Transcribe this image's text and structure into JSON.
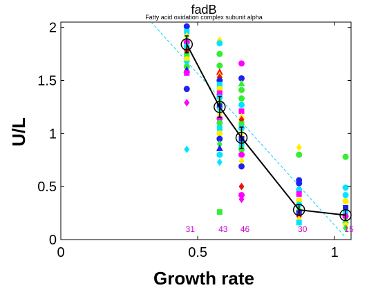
{
  "chart_data": {
    "type": "scatter",
    "title": "fadB",
    "subtitle": "Fatty acid oxidation complex subunit alpha",
    "xlabel": "Growth rate",
    "ylabel": "U/L",
    "xlim": [
      0,
      1.06
    ],
    "ylim": [
      0,
      2.05
    ],
    "x_ticks": [
      0,
      0.5,
      1
    ],
    "y_ticks": [
      0,
      0.5,
      1,
      1.5,
      2
    ],
    "grid": false,
    "legend": "none",
    "mean_series": {
      "x": [
        0.46,
        0.58,
        0.66,
        0.87,
        1.04
      ],
      "y": [
        1.84,
        1.25,
        0.96,
        0.28,
        0.23
      ],
      "err": [
        0.08,
        0.1,
        0.1,
        0.05,
        0.05
      ]
    },
    "fit_line": {
      "x": [
        0.33,
        1.04
      ],
      "y": [
        2.05,
        0.02
      ]
    },
    "sample_counts": [
      {
        "x": 0.46,
        "label": "31"
      },
      {
        "x": 0.58,
        "label": "43"
      },
      {
        "x": 0.66,
        "label": "46"
      },
      {
        "x": 0.87,
        "label": "30"
      },
      {
        "x": 1.04,
        "label": "15"
      }
    ],
    "points": [
      {
        "x": 0.46,
        "y": 2.01,
        "c": "#2222ee",
        "s": "o"
      },
      {
        "x": 0.46,
        "y": 1.96,
        "c": "#00e5ff",
        "s": "s"
      },
      {
        "x": 0.46,
        "y": 1.92,
        "c": "#ffee00",
        "s": "d"
      },
      {
        "x": 0.46,
        "y": 1.89,
        "c": "#33ee33",
        "s": "^"
      },
      {
        "x": 0.46,
        "y": 1.86,
        "c": "#ff00ff",
        "s": "o"
      },
      {
        "x": 0.46,
        "y": 1.82,
        "c": "#00e5ff",
        "s": "o"
      },
      {
        "x": 0.46,
        "y": 1.78,
        "c": "#ee1111",
        "s": "d"
      },
      {
        "x": 0.46,
        "y": 1.74,
        "c": "#33ee33",
        "s": "s"
      },
      {
        "x": 0.46,
        "y": 1.7,
        "c": "#ffee00",
        "s": "o"
      },
      {
        "x": 0.46,
        "y": 1.66,
        "c": "#00e5ff",
        "s": "v"
      },
      {
        "x": 0.46,
        "y": 1.63,
        "c": "#33ee33",
        "s": "o"
      },
      {
        "x": 0.46,
        "y": 1.6,
        "c": "#2222ee",
        "s": "^"
      },
      {
        "x": 0.46,
        "y": 1.57,
        "c": "#ff00ff",
        "s": "s"
      },
      {
        "x": 0.46,
        "y": 1.42,
        "c": "#2222ee",
        "s": "o"
      },
      {
        "x": 0.46,
        "y": 1.29,
        "c": "#ff00ff",
        "s": "d"
      },
      {
        "x": 0.46,
        "y": 0.85,
        "c": "#00e5ff",
        "s": "d"
      },
      {
        "x": 0.58,
        "y": 1.88,
        "c": "#ffee00",
        "s": "d"
      },
      {
        "x": 0.58,
        "y": 1.85,
        "c": "#00e5ff",
        "s": "o"
      },
      {
        "x": 0.58,
        "y": 1.75,
        "c": "#33ee33",
        "s": "o"
      },
      {
        "x": 0.58,
        "y": 1.64,
        "c": "#33ee33",
        "s": "o"
      },
      {
        "x": 0.58,
        "y": 1.58,
        "c": "#ee1111",
        "s": "^"
      },
      {
        "x": 0.58,
        "y": 1.55,
        "c": "#ffee00",
        "s": "^"
      },
      {
        "x": 0.58,
        "y": 1.53,
        "c": "#ee1111",
        "s": "d"
      },
      {
        "x": 0.58,
        "y": 1.5,
        "c": "#2222ee",
        "s": "o"
      },
      {
        "x": 0.58,
        "y": 1.46,
        "c": "#00e5ff",
        "s": "s"
      },
      {
        "x": 0.58,
        "y": 1.42,
        "c": "#ffee00",
        "s": "o"
      },
      {
        "x": 0.58,
        "y": 1.38,
        "c": "#ff00ff",
        "s": "s"
      },
      {
        "x": 0.58,
        "y": 1.34,
        "c": "#00e5ff",
        "s": "o"
      },
      {
        "x": 0.58,
        "y": 1.3,
        "c": "#33ee33",
        "s": "d"
      },
      {
        "x": 0.58,
        "y": 1.26,
        "c": "#2222ee",
        "s": "s"
      },
      {
        "x": 0.58,
        "y": 1.22,
        "c": "#00e5ff",
        "s": "v"
      },
      {
        "x": 0.58,
        "y": 1.18,
        "c": "#ffee00",
        "s": "d"
      },
      {
        "x": 0.58,
        "y": 1.14,
        "c": "#ff00ff",
        "s": "o"
      },
      {
        "x": 0.58,
        "y": 1.1,
        "c": "#33ee33",
        "s": "o"
      },
      {
        "x": 0.58,
        "y": 1.05,
        "c": "#00e5ff",
        "s": "s"
      },
      {
        "x": 0.58,
        "y": 1.0,
        "c": "#ffee00",
        "s": "o"
      },
      {
        "x": 0.58,
        "y": 0.95,
        "c": "#2222ee",
        "s": "o"
      },
      {
        "x": 0.58,
        "y": 0.9,
        "c": "#33ee33",
        "s": "d"
      },
      {
        "x": 0.58,
        "y": 0.86,
        "c": "#2222ee",
        "s": "^"
      },
      {
        "x": 0.58,
        "y": 0.8,
        "c": "#00e5ff",
        "s": "o"
      },
      {
        "x": 0.58,
        "y": 0.73,
        "c": "#00e5ff",
        "s": "d"
      },
      {
        "x": 0.58,
        "y": 0.26,
        "c": "#33ee33",
        "s": "s"
      },
      {
        "x": 0.66,
        "y": 1.66,
        "c": "#ff00ff",
        "s": "o"
      },
      {
        "x": 0.66,
        "y": 1.52,
        "c": "#2222ee",
        "s": "o"
      },
      {
        "x": 0.66,
        "y": 1.47,
        "c": "#33ee33",
        "s": "^"
      },
      {
        "x": 0.66,
        "y": 1.41,
        "c": "#33ee33",
        "s": "o"
      },
      {
        "x": 0.66,
        "y": 1.33,
        "c": "#33ee33",
        "s": "o"
      },
      {
        "x": 0.66,
        "y": 1.27,
        "c": "#00e5ff",
        "s": "o"
      },
      {
        "x": 0.66,
        "y": 1.21,
        "c": "#ff00ff",
        "s": "s"
      },
      {
        "x": 0.66,
        "y": 1.16,
        "c": "#ffee00",
        "s": "^"
      },
      {
        "x": 0.66,
        "y": 1.13,
        "c": "#ee1111",
        "s": "d"
      },
      {
        "x": 0.66,
        "y": 1.09,
        "c": "#33ee33",
        "s": "s"
      },
      {
        "x": 0.66,
        "y": 1.05,
        "c": "#00e5ff",
        "s": "o"
      },
      {
        "x": 0.66,
        "y": 1.0,
        "c": "#ffee00",
        "s": "d"
      },
      {
        "x": 0.66,
        "y": 0.95,
        "c": "#2222ee",
        "s": "s"
      },
      {
        "x": 0.66,
        "y": 0.9,
        "c": "#00e5ff",
        "s": "s"
      },
      {
        "x": 0.66,
        "y": 0.85,
        "c": "#33ee33",
        "s": "o"
      },
      {
        "x": 0.66,
        "y": 0.8,
        "c": "#ff00ff",
        "s": "o"
      },
      {
        "x": 0.66,
        "y": 0.74,
        "c": "#ffee00",
        "s": "d"
      },
      {
        "x": 0.66,
        "y": 0.69,
        "c": "#2222ee",
        "s": "o"
      },
      {
        "x": 0.66,
        "y": 0.5,
        "c": "#ee1111",
        "s": "d"
      },
      {
        "x": 0.66,
        "y": 0.42,
        "c": "#ff00ff",
        "s": "o"
      },
      {
        "x": 0.66,
        "y": 0.38,
        "c": "#ff00ff",
        "s": "d"
      },
      {
        "x": 0.87,
        "y": 0.87,
        "c": "#ffee00",
        "s": "d"
      },
      {
        "x": 0.87,
        "y": 0.8,
        "c": "#33ee33",
        "s": "o"
      },
      {
        "x": 0.87,
        "y": 0.56,
        "c": "#2222ee",
        "s": "o"
      },
      {
        "x": 0.87,
        "y": 0.53,
        "c": "#2222ee",
        "s": "o"
      },
      {
        "x": 0.87,
        "y": 0.47,
        "c": "#00e5ff",
        "s": "o"
      },
      {
        "x": 0.87,
        "y": 0.43,
        "c": "#ff00ff",
        "s": "s"
      },
      {
        "x": 0.87,
        "y": 0.37,
        "c": "#ffee00",
        "s": "o"
      },
      {
        "x": 0.87,
        "y": 0.33,
        "c": "#00e5ff",
        "s": "o"
      },
      {
        "x": 0.87,
        "y": 0.29,
        "c": "#33ee33",
        "s": "^"
      },
      {
        "x": 0.87,
        "y": 0.25,
        "c": "#2222ee",
        "s": "s"
      },
      {
        "x": 0.87,
        "y": 0.22,
        "c": "#ee1111",
        "s": "d"
      },
      {
        "x": 0.87,
        "y": 0.19,
        "c": "#ffee00",
        "s": "d"
      },
      {
        "x": 0.87,
        "y": 0.16,
        "c": "#00e5ff",
        "s": "s"
      },
      {
        "x": 1.04,
        "y": 0.78,
        "c": "#33ee33",
        "s": "o"
      },
      {
        "x": 1.04,
        "y": 0.49,
        "c": "#00e5ff",
        "s": "o"
      },
      {
        "x": 1.04,
        "y": 0.42,
        "c": "#00e5ff",
        "s": "o"
      },
      {
        "x": 1.04,
        "y": 0.36,
        "c": "#ffee00",
        "s": "o"
      },
      {
        "x": 1.04,
        "y": 0.3,
        "c": "#2222ee",
        "s": "s"
      },
      {
        "x": 1.04,
        "y": 0.26,
        "c": "#00e5ff",
        "s": "s"
      },
      {
        "x": 1.04,
        "y": 0.22,
        "c": "#ff00ff",
        "s": "o"
      },
      {
        "x": 1.04,
        "y": 0.18,
        "c": "#33ee33",
        "s": "^"
      },
      {
        "x": 1.04,
        "y": 0.14,
        "c": "#ffee00",
        "s": "d"
      },
      {
        "x": 1.04,
        "y": 0.11,
        "c": "#33ee33",
        "s": "d"
      }
    ],
    "colors": {
      "mean_line": "#000000",
      "fit_line": "#00d0ff",
      "count_label": "#cc00cc",
      "axis": "#000000"
    }
  }
}
